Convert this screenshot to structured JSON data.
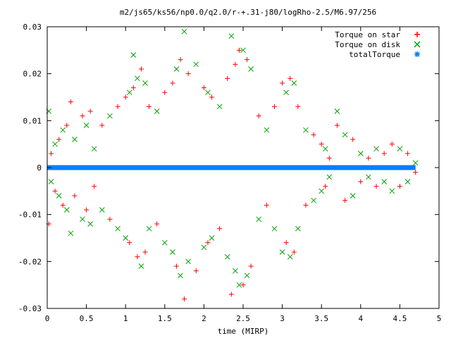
{
  "chart_data": {
    "type": "scatter",
    "title": "m2/js65/ks56/np0.0/q2.0/r-+.31-j80/logRho-2.5/M6.97/256",
    "xlabel": "time (MIRP)",
    "ylabel": "",
    "xlim": [
      0,
      5
    ],
    "ylim": [
      -0.03,
      0.03
    ],
    "x_ticks": [
      0,
      0.5,
      1,
      1.5,
      2,
      2.5,
      3,
      3.5,
      4,
      4.5,
      5
    ],
    "x_tick_labels": [
      "0",
      "0.5",
      "1",
      "1.5",
      "2",
      "2.5",
      "3",
      "3.5",
      "4",
      "4.5",
      "5"
    ],
    "y_ticks": [
      -0.03,
      -0.02,
      -0.01,
      0,
      0.01,
      0.02,
      0.03
    ],
    "y_tick_labels": [
      "-0.03",
      "-0.02",
      "-0.01",
      "0",
      "0.01",
      "0.02",
      "0.03"
    ],
    "grid": false,
    "legend_position": "top-right",
    "series": [
      {
        "name": "Torque on star",
        "marker": "plus",
        "color": "#ff0000",
        "x_start": 0,
        "x_end": 4.7,
        "points": [
          [
            0.02,
            -0.012
          ],
          [
            0.05,
            0.003
          ],
          [
            0.1,
            -0.005
          ],
          [
            0.15,
            0.006
          ],
          [
            0.2,
            -0.008
          ],
          [
            0.25,
            0.009
          ],
          [
            0.3,
            0.014
          ],
          [
            0.35,
            -0.006
          ],
          [
            0.45,
            0.011
          ],
          [
            0.5,
            -0.009
          ],
          [
            0.55,
            0.012
          ],
          [
            0.6,
            -0.004
          ],
          [
            0.7,
            0.009
          ],
          [
            0.8,
            -0.011
          ],
          [
            0.9,
            0.013
          ],
          [
            1.0,
            0.015
          ],
          [
            1.05,
            -0.016
          ],
          [
            1.1,
            0.017
          ],
          [
            1.15,
            -0.019
          ],
          [
            1.2,
            0.021
          ],
          [
            1.25,
            -0.018
          ],
          [
            1.3,
            0.013
          ],
          [
            1.4,
            -0.012
          ],
          [
            1.5,
            0.016
          ],
          [
            1.6,
            0.018
          ],
          [
            1.65,
            -0.021
          ],
          [
            1.7,
            0.023
          ],
          [
            1.75,
            -0.028
          ],
          [
            1.8,
            0.02
          ],
          [
            1.9,
            -0.022
          ],
          [
            2.0,
            0.017
          ],
          [
            2.05,
            -0.016
          ],
          [
            2.1,
            0.015
          ],
          [
            2.2,
            -0.013
          ],
          [
            2.3,
            0.019
          ],
          [
            2.35,
            -0.027
          ],
          [
            2.4,
            0.022
          ],
          [
            2.45,
            0.025
          ],
          [
            2.5,
            -0.025
          ],
          [
            2.55,
            0.023
          ],
          [
            2.6,
            -0.021
          ],
          [
            2.7,
            0.011
          ],
          [
            2.8,
            -0.008
          ],
          [
            2.9,
            0.013
          ],
          [
            3.0,
            0.018
          ],
          [
            3.05,
            -0.016
          ],
          [
            3.1,
            0.019
          ],
          [
            3.15,
            -0.018
          ],
          [
            3.2,
            0.013
          ],
          [
            3.3,
            -0.008
          ],
          [
            3.4,
            0.007
          ],
          [
            3.5,
            0.005
          ],
          [
            3.55,
            -0.004
          ],
          [
            3.6,
            0.002
          ],
          [
            3.7,
            0.009
          ],
          [
            3.8,
            -0.007
          ],
          [
            3.9,
            0.006
          ],
          [
            4.0,
            -0.003
          ],
          [
            4.1,
            0.002
          ],
          [
            4.2,
            -0.004
          ],
          [
            4.3,
            0.003
          ],
          [
            4.4,
            0.005
          ],
          [
            4.5,
            -0.004
          ],
          [
            4.6,
            0.003
          ],
          [
            4.7,
            -0.001
          ]
        ]
      },
      {
        "name": "Torque on disk",
        "marker": "cross",
        "color": "#00a000",
        "x_start": 0,
        "x_end": 4.7,
        "points": [
          [
            0.02,
            0.012
          ],
          [
            0.05,
            -0.003
          ],
          [
            0.1,
            0.005
          ],
          [
            0.15,
            -0.006
          ],
          [
            0.2,
            0.008
          ],
          [
            0.25,
            -0.009
          ],
          [
            0.3,
            -0.014
          ],
          [
            0.35,
            0.006
          ],
          [
            0.45,
            -0.011
          ],
          [
            0.5,
            0.009
          ],
          [
            0.55,
            -0.012
          ],
          [
            0.6,
            0.004
          ],
          [
            0.7,
            -0.009
          ],
          [
            0.8,
            0.011
          ],
          [
            0.9,
            -0.013
          ],
          [
            1.0,
            -0.015
          ],
          [
            1.05,
            0.016
          ],
          [
            1.1,
            0.024
          ],
          [
            1.15,
            0.019
          ],
          [
            1.2,
            -0.021
          ],
          [
            1.25,
            0.018
          ],
          [
            1.3,
            -0.013
          ],
          [
            1.4,
            0.012
          ],
          [
            1.5,
            -0.016
          ],
          [
            1.6,
            -0.018
          ],
          [
            1.65,
            0.021
          ],
          [
            1.7,
            -0.023
          ],
          [
            1.75,
            0.029
          ],
          [
            1.8,
            -0.02
          ],
          [
            1.9,
            0.022
          ],
          [
            2.0,
            -0.017
          ],
          [
            2.05,
            0.016
          ],
          [
            2.1,
            -0.015
          ],
          [
            2.2,
            0.013
          ],
          [
            2.3,
            -0.019
          ],
          [
            2.35,
            0.028
          ],
          [
            2.4,
            -0.022
          ],
          [
            2.45,
            -0.025
          ],
          [
            2.5,
            0.025
          ],
          [
            2.55,
            -0.023
          ],
          [
            2.6,
            0.021
          ],
          [
            2.7,
            -0.011
          ],
          [
            2.8,
            0.008
          ],
          [
            2.9,
            -0.013
          ],
          [
            3.0,
            -0.018
          ],
          [
            3.05,
            0.016
          ],
          [
            3.1,
            -0.019
          ],
          [
            3.15,
            0.018
          ],
          [
            3.2,
            -0.013
          ],
          [
            3.3,
            0.008
          ],
          [
            3.4,
            -0.007
          ],
          [
            3.5,
            -0.005
          ],
          [
            3.55,
            0.004
          ],
          [
            3.6,
            -0.002
          ],
          [
            3.7,
            0.012
          ],
          [
            3.8,
            0.007
          ],
          [
            3.9,
            -0.006
          ],
          [
            4.0,
            0.003
          ],
          [
            4.1,
            -0.002
          ],
          [
            4.2,
            0.004
          ],
          [
            4.3,
            -0.003
          ],
          [
            4.4,
            -0.005
          ],
          [
            4.5,
            0.004
          ],
          [
            4.6,
            -0.003
          ],
          [
            4.7,
            0.001
          ]
        ]
      },
      {
        "name": "totalTorque",
        "marker": "star",
        "color": "#0080ff",
        "x_start": 0,
        "x_end": 4.7,
        "constant_value": 0
      }
    ]
  }
}
